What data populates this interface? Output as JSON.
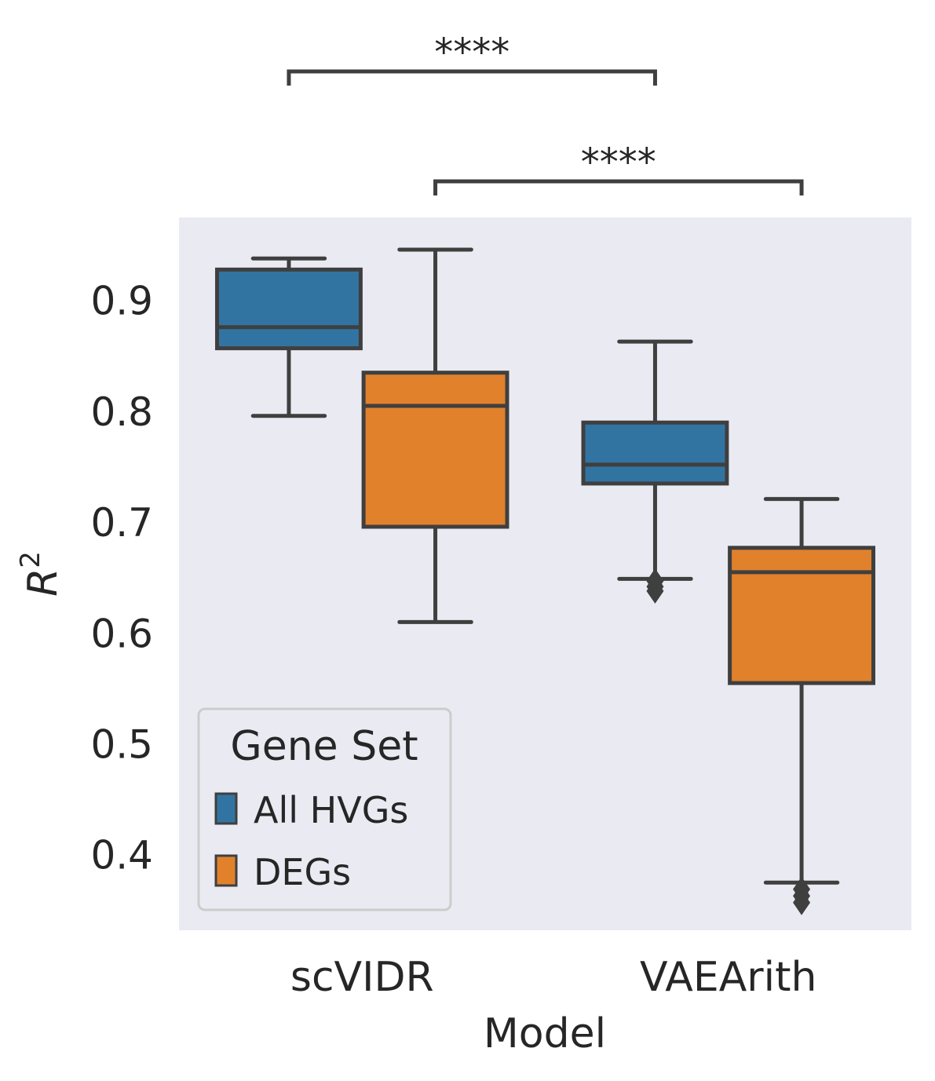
{
  "chart_data": {
    "type": "box",
    "xlabel": "Model",
    "ylabel_base": "R",
    "ylabel_sup": "2",
    "categories": [
      "scVIDR",
      "VAEArith"
    ],
    "yticks": [
      "0.4",
      "0.5",
      "0.6",
      "0.7",
      "0.8",
      "0.9"
    ],
    "ytick_values": [
      0.4,
      0.5,
      0.6,
      0.7,
      0.8,
      0.9
    ],
    "ylim": [
      0.335,
      0.978
    ],
    "grid": false,
    "background": "#eaeaf2",
    "series": [
      {
        "name": "All HVGs",
        "color": "#3274a1",
        "boxes": [
          {
            "category": "scVIDR",
            "whislo": 0.799,
            "q1": 0.86,
            "median": 0.879,
            "q3": 0.931,
            "whishi": 0.941,
            "fliers": []
          },
          {
            "category": "VAEArith",
            "whislo": 0.652,
            "q1": 0.738,
            "median": 0.755,
            "q3": 0.793,
            "whishi": 0.866,
            "fliers": [
              0.65,
              0.645,
              0.641
            ]
          }
        ]
      },
      {
        "name": "DEGs",
        "color": "#e1812c",
        "boxes": [
          {
            "category": "scVIDR",
            "whislo": 0.613,
            "q1": 0.699,
            "median": 0.808,
            "q3": 0.838,
            "whishi": 0.949,
            "fliers": []
          },
          {
            "category": "VAEArith",
            "whislo": 0.378,
            "q1": 0.558,
            "median": 0.658,
            "q3": 0.68,
            "whishi": 0.724,
            "fliers": [
              0.372,
              0.366,
              0.36
            ]
          }
        ]
      }
    ],
    "significance": [
      {
        "label": "****",
        "from": {
          "category": "scVIDR",
          "series": "All HVGs"
        },
        "to": {
          "category": "VAEArith",
          "series": "All HVGs"
        }
      },
      {
        "label": "****",
        "from": {
          "category": "scVIDR",
          "series": "DEGs"
        },
        "to": {
          "category": "VAEArith",
          "series": "DEGs"
        }
      }
    ],
    "legend": {
      "title": "Gene Set",
      "items": [
        "All HVGs",
        "DEGs"
      ],
      "placement": "lower-left"
    }
  }
}
